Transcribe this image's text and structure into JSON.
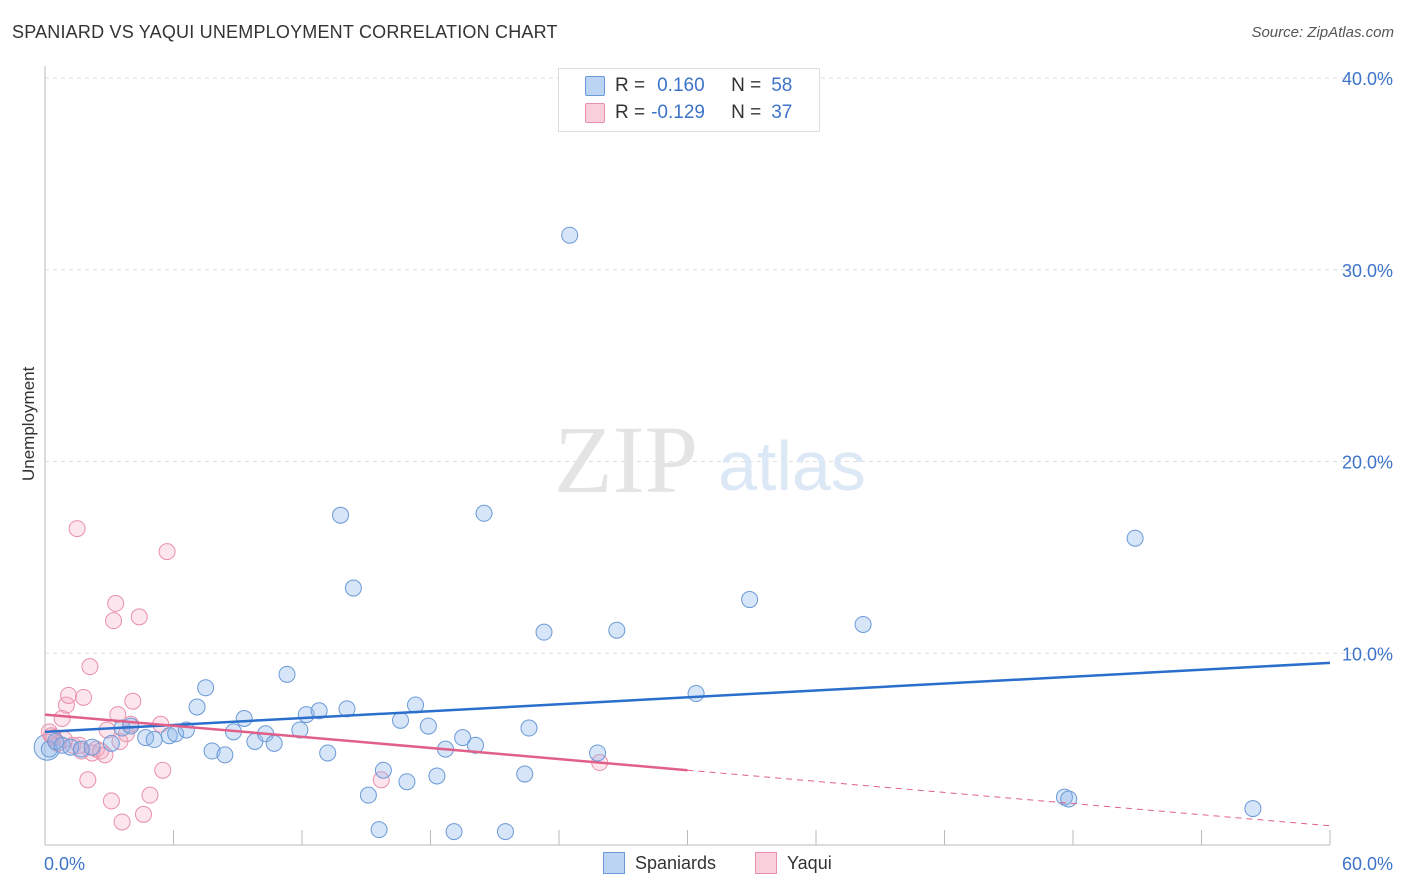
{
  "header": {
    "title": "SPANIARD VS YAQUI UNEMPLOYMENT CORRELATION CHART",
    "source": "Source: ZipAtlas.com"
  },
  "watermark": {
    "zip": "ZIP",
    "atlas": "atlas"
  },
  "legend": {
    "rows": [
      {
        "r_label": "R =",
        "r_value": "0.160",
        "n_label": "N =",
        "n_value": "58",
        "color": "#a8c6f0",
        "border": "#6a9ad8"
      },
      {
        "r_label": "R =",
        "r_value": "-0.129",
        "n_label": "N =",
        "n_value": "37",
        "color": "#f7c0d0",
        "border": "#e890aa"
      }
    ]
  },
  "bottom_legend": {
    "series1": "Spaniards",
    "series2": "Yaqui"
  },
  "colors": {
    "spaniards_fill": "rgba(140,180,235,0.35)",
    "spaniards_stroke": "#6b9ad6",
    "spaniards_line": "#2a6fcc",
    "yaqui_fill": "rgba(245,170,195,0.30)",
    "yaqui_stroke": "#e890aa",
    "yaqui_line": "#e0608a",
    "axis_label": "#3d74c9",
    "grid": "#dddddd"
  },
  "chart_data": {
    "type": "scatter",
    "title": "SPANIARD VS YAQUI UNEMPLOYMENT CORRELATION CHART",
    "xlabel": "",
    "ylabel": "Unemployment",
    "xlim": [
      0,
      60
    ],
    "ylim": [
      0,
      40
    ],
    "x_tick_labels": [
      "0.0%",
      "60.0%"
    ],
    "y_ticks": [
      10,
      20,
      30,
      40
    ],
    "y_tick_labels": [
      "10.0%",
      "20.0%",
      "30.0%",
      "40.0%"
    ],
    "grid": true,
    "series": [
      {
        "name": "Spaniards",
        "points": [
          [
            0.2,
            5.0
          ],
          [
            0.5,
            5.4
          ],
          [
            0.8,
            5.2
          ],
          [
            1.2,
            5.1
          ],
          [
            1.7,
            5.0
          ],
          [
            2.2,
            5.1
          ],
          [
            3.1,
            5.3
          ],
          [
            3.6,
            6.1
          ],
          [
            4.0,
            6.2
          ],
          [
            4.7,
            5.6
          ],
          [
            5.1,
            5.5
          ],
          [
            5.8,
            5.7
          ],
          [
            6.1,
            5.8
          ],
          [
            6.6,
            6.0
          ],
          [
            7.1,
            7.2
          ],
          [
            7.5,
            8.2
          ],
          [
            7.8,
            4.9
          ],
          [
            8.4,
            4.7
          ],
          [
            8.8,
            5.9
          ],
          [
            9.3,
            6.6
          ],
          [
            9.8,
            5.4
          ],
          [
            10.3,
            5.8
          ],
          [
            10.7,
            5.3
          ],
          [
            11.3,
            8.9
          ],
          [
            11.9,
            6.0
          ],
          [
            12.2,
            6.8
          ],
          [
            12.8,
            7.0
          ],
          [
            13.2,
            4.8
          ],
          [
            13.8,
            17.2
          ],
          [
            14.1,
            7.1
          ],
          [
            14.4,
            13.4
          ],
          [
            15.1,
            2.6
          ],
          [
            15.6,
            0.8
          ],
          [
            15.8,
            3.9
          ],
          [
            16.6,
            6.5
          ],
          [
            16.9,
            3.3
          ],
          [
            17.3,
            7.3
          ],
          [
            17.9,
            6.2
          ],
          [
            18.3,
            3.6
          ],
          [
            18.7,
            5.0
          ],
          [
            19.1,
            0.7
          ],
          [
            19.5,
            5.6
          ],
          [
            20.1,
            5.2
          ],
          [
            20.5,
            17.3
          ],
          [
            21.5,
            0.7
          ],
          [
            22.4,
            3.7
          ],
          [
            22.6,
            6.1
          ],
          [
            23.3,
            11.1
          ],
          [
            24.5,
            31.8
          ],
          [
            25.8,
            4.8
          ],
          [
            26.7,
            11.2
          ],
          [
            30.4,
            7.9
          ],
          [
            32.9,
            12.8
          ],
          [
            38.2,
            11.5
          ],
          [
            47.6,
            2.5
          ],
          [
            47.8,
            2.4
          ],
          [
            50.9,
            16.0
          ],
          [
            56.4,
            1.9
          ]
        ]
      },
      {
        "name": "Yaqui",
        "points": [
          [
            0.2,
            5.9
          ],
          [
            0.4,
            5.6
          ],
          [
            0.6,
            5.3
          ],
          [
            0.8,
            6.6
          ],
          [
            1.0,
            7.3
          ],
          [
            1.1,
            7.8
          ],
          [
            1.3,
            5.2
          ],
          [
            1.5,
            16.5
          ],
          [
            1.7,
            4.9
          ],
          [
            1.8,
            7.7
          ],
          [
            2.0,
            3.4
          ],
          [
            2.1,
            9.3
          ],
          [
            2.2,
            4.8
          ],
          [
            2.4,
            5.0
          ],
          [
            2.6,
            4.9
          ],
          [
            2.8,
            4.7
          ],
          [
            2.9,
            6.0
          ],
          [
            3.1,
            2.3
          ],
          [
            3.2,
            11.7
          ],
          [
            3.3,
            12.6
          ],
          [
            3.4,
            6.8
          ],
          [
            3.5,
            5.4
          ],
          [
            3.6,
            1.2
          ],
          [
            3.8,
            5.8
          ],
          [
            4.0,
            6.3
          ],
          [
            4.1,
            7.5
          ],
          [
            4.4,
            11.9
          ],
          [
            4.6,
            1.6
          ],
          [
            4.9,
            2.6
          ],
          [
            5.4,
            6.3
          ],
          [
            5.5,
            3.9
          ],
          [
            5.7,
            15.3
          ],
          [
            15.7,
            3.4
          ],
          [
            25.9,
            4.3
          ],
          [
            0.3,
            5.7
          ],
          [
            0.9,
            5.5
          ],
          [
            1.6,
            5.2
          ]
        ]
      }
    ],
    "trendlines": [
      {
        "series": "Spaniards",
        "from": [
          0,
          5.9
        ],
        "to": [
          60,
          9.5
        ],
        "style": "solid"
      },
      {
        "series": "Yaqui",
        "from": [
          0,
          6.8
        ],
        "to": [
          30,
          3.9
        ],
        "style": "solid"
      },
      {
        "series": "Yaqui",
        "from": [
          30,
          3.9
        ],
        "to": [
          60,
          1.0
        ],
        "style": "dashed"
      }
    ]
  }
}
